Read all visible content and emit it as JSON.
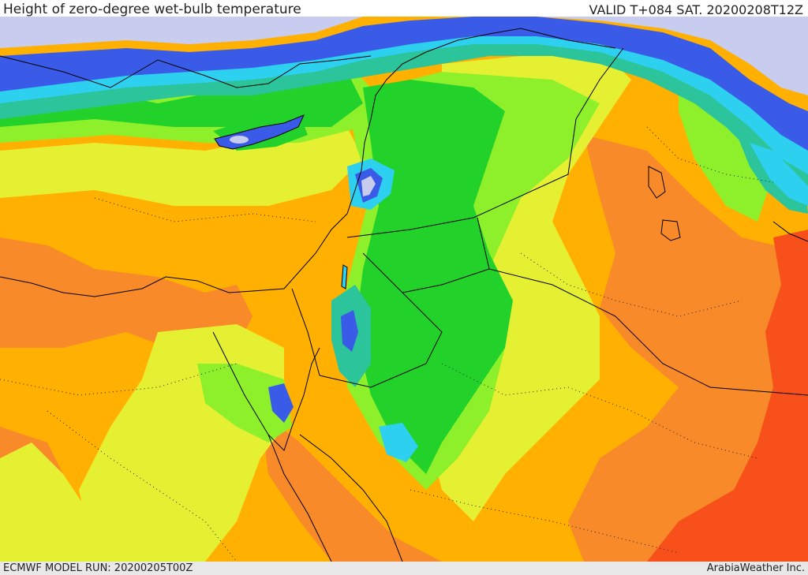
{
  "header": {
    "title": "Height of zero-degree wet-bulb temperature",
    "valid": "VALID T+084 SAT. 20200208T12Z"
  },
  "footer": {
    "model_run": "ECMWF MODEL RUN: 20200205T00Z",
    "credit": "ArabiaWeather Inc."
  },
  "palette": {
    "lavender": "#c8cdf0",
    "blue": "#3a5be8",
    "cyan": "#2ed0f0",
    "teal": "#2cc49a",
    "green": "#22d22a",
    "lightgreen": "#8ef02a",
    "yellow": "#e6f032",
    "orange": "#ffb000",
    "darkorange": "#f88a2a",
    "red": "#f8501a"
  }
}
